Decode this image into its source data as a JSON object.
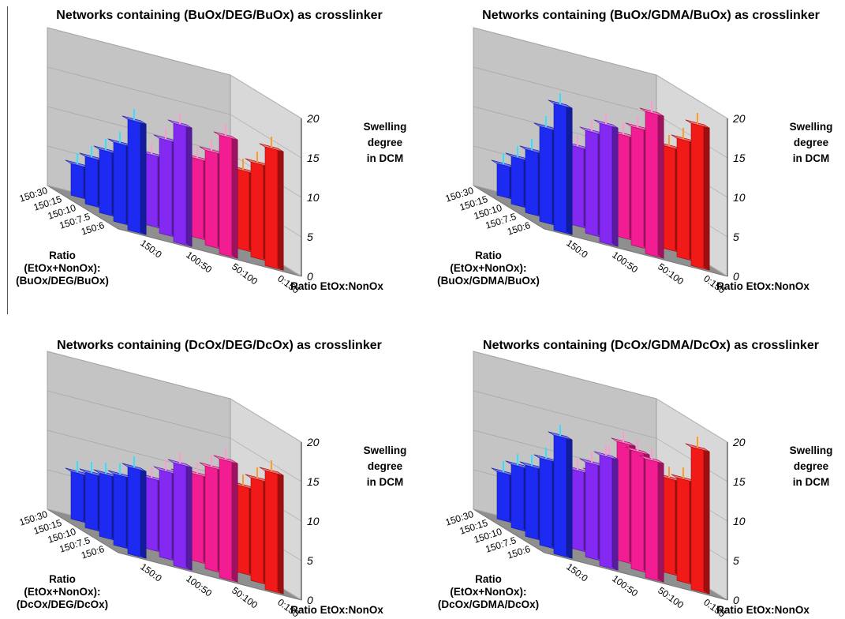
{
  "chart_data": [
    {
      "type": "bar3d",
      "title": "Networks containing (BuOx/DEG/BuOx) as crosslinker",
      "xlabel": "Ratio EtOx:NonOx",
      "ylabel": [
        "Ratio",
        "(EtOx+NonOx):",
        "(BuOx/DEG/BuOx)"
      ],
      "zlabel": [
        "Swelling",
        "degree",
        "in DCM"
      ],
      "zlim": [
        0,
        20
      ],
      "zticks": [
        "0",
        "5",
        "10",
        "15",
        "20"
      ],
      "x_categories": [
        "150:0",
        "100:50",
        "50:100",
        "0:150"
      ],
      "y_categories": [
        "150:6",
        "150:7.5",
        "150:10",
        "150:15",
        "150:30"
      ],
      "series": [
        {
          "x": "150:0",
          "color": "#1f2dff",
          "values": [
            14,
            10,
            8,
            6,
            4
          ]
        },
        {
          "x": "100:50",
          "color": "#8a2bff",
          "values": [
            15,
            12,
            9,
            7,
            5
          ]
        },
        {
          "x": "50:100",
          "color": "#ff1e9a",
          "values": [
            15,
            12,
            10,
            8,
            5
          ]
        },
        {
          "x": "0:150",
          "color": "#ff1a1a",
          "values": [
            15,
            12,
            10,
            8,
            7
          ]
        }
      ]
    },
    {
      "type": "bar3d",
      "title": "Networks containing (BuOx/GDMA/BuOx) as crosslinker",
      "xlabel": "Ratio EtOx:NonOx",
      "ylabel": [
        "Ratio",
        "(EtOx+NonOx):",
        "(BuOx/GDMA/BuOx)"
      ],
      "zlabel": [
        "Swelling",
        "degree",
        "in DCM"
      ],
      "zlim": [
        0,
        20
      ],
      "zticks": [
        "0",
        "5",
        "10",
        "15",
        "20"
      ],
      "x_categories": [
        "150:0",
        "100:50",
        "50:100",
        "0:150"
      ],
      "y_categories": [
        "150:6",
        "150:7.5",
        "150:10",
        "150:15",
        "150:30"
      ],
      "series": [
        {
          "x": "150:0",
          "color": "#1f2dff",
          "values": [
            16,
            12,
            8,
            6,
            4
          ]
        },
        {
          "x": "100:50",
          "color": "#8a2bff",
          "values": [
            15,
            13,
            10,
            8,
            6
          ]
        },
        {
          "x": "50:100",
          "color": "#ff1e9a",
          "values": [
            18,
            15,
            13,
            10,
            6
          ]
        },
        {
          "x": "0:150",
          "color": "#ff1a1a",
          "values": [
            18,
            15,
            13,
            11,
            7
          ]
        }
      ]
    },
    {
      "type": "bar3d",
      "title": "Networks containing (DcOx/DEG/DcOx) as crosslinker",
      "xlabel": "Ratio EtOx:NonOx",
      "ylabel": [
        "Ratio",
        "(EtOx+NonOx):",
        "(DcOx/DEG/DcOx)"
      ],
      "zlabel": [
        "Swelling",
        "degree",
        "in DCM"
      ],
      "zlim": [
        0,
        20
      ],
      "zticks": [
        "0",
        "5",
        "10",
        "15",
        "20"
      ],
      "x_categories": [
        "150:0",
        "100:50",
        "50:100",
        "0:150"
      ],
      "y_categories": [
        "150:6",
        "150:7.5",
        "150:10",
        "150:15",
        "150:30"
      ],
      "series": [
        {
          "x": "150:0",
          "color": "#1f2dff",
          "values": [
            11,
            9,
            8,
            7,
            6
          ]
        },
        {
          "x": "100:50",
          "color": "#8a2bff",
          "values": [
            13,
            11,
            9,
            7,
            5
          ]
        },
        {
          "x": "50:100",
          "color": "#ff1e9a",
          "values": [
            15,
            13,
            11,
            10,
            7
          ]
        },
        {
          "x": "0:150",
          "color": "#ff1a1a",
          "values": [
            15,
            13,
            11,
            9,
            6
          ]
        }
      ]
    },
    {
      "type": "bar3d",
      "title": "Networks containing (DcOx/GDMA/DcOx) as crosslinker",
      "xlabel": "Ratio EtOx:NonOx",
      "ylabel": [
        "Ratio",
        "(EtOx+NonOx):",
        "(DcOx/GDMA/DcOx)"
      ],
      "zlabel": [
        "Swelling",
        "degree",
        "in DCM"
      ],
      "zlim": [
        0,
        20
      ],
      "zticks": [
        "0",
        "5",
        "10",
        "15",
        "20"
      ],
      "x_categories": [
        "150:0",
        "100:50",
        "50:100",
        "0:150"
      ],
      "y_categories": [
        "150:6",
        "150:7.5",
        "150:10",
        "150:15",
        "150:30"
      ],
      "series": [
        {
          "x": "150:0",
          "color": "#1f2dff",
          "values": [
            15,
            11,
            9,
            8,
            6
          ]
        },
        {
          "x": "100:50",
          "color": "#8a2bff",
          "values": [
            14,
            12,
            10,
            9,
            6
          ]
        },
        {
          "x": "50:100",
          "color": "#ff1e9a",
          "values": [
            15,
            15,
            15,
            12,
            9
          ]
        },
        {
          "x": "0:150",
          "color": "#ff1a1a",
          "values": [
            18,
            13,
            12,
            10,
            8
          ]
        }
      ]
    }
  ]
}
